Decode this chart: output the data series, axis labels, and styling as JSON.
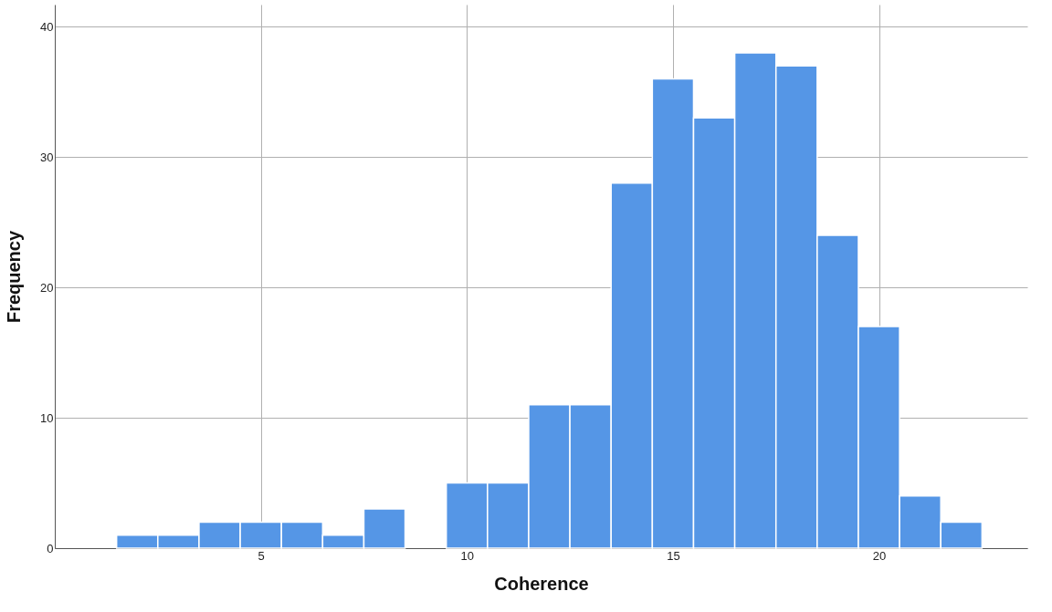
{
  "chart_data": {
    "type": "histogram",
    "xlabel": "Coherence",
    "ylabel": "Frequency",
    "bins": [
      1.5,
      2.5,
      3.5,
      4.5,
      5.5,
      6.5,
      7.5,
      8.5,
      9.5,
      10.5,
      11.5,
      12.5,
      13.5,
      14.5,
      15.5,
      16.5,
      17.5,
      18.5,
      19.5,
      20.5,
      21.5,
      22.5
    ],
    "values": [
      1,
      1,
      2,
      2,
      2,
      1,
      3,
      0,
      5,
      5,
      11,
      11,
      28,
      36,
      33,
      38,
      37,
      24,
      17,
      4,
      2
    ],
    "color": "#5596e6",
    "xlim": [
      0,
      23.6
    ],
    "xticks": [
      5,
      10,
      15,
      20
    ],
    "ylim": [
      0,
      41.7
    ],
    "yticks": [
      0,
      10,
      20,
      30,
      40
    ],
    "grid": true
  }
}
